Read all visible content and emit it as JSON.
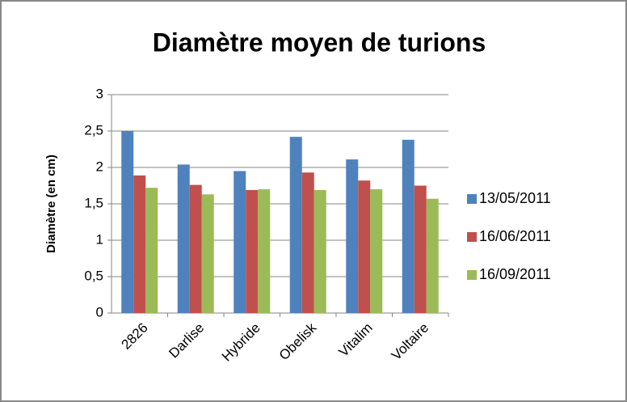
{
  "chart_data": {
    "type": "bar",
    "title": "Diamètre moyen de turions",
    "y_label": "Diamètre (en cm)",
    "categories": [
      "2826",
      "Darlise",
      "Hybride",
      "Obelisk",
      "Vitalim",
      "Voltaire"
    ],
    "series": [
      {
        "name": "13/05/2011",
        "color": "#4f81bd",
        "values": [
          2.5,
          2.04,
          1.95,
          2.42,
          2.11,
          2.38
        ]
      },
      {
        "name": "16/06/2011",
        "color": "#c0504d",
        "values": [
          1.89,
          1.76,
          1.69,
          1.93,
          1.82,
          1.75
        ]
      },
      {
        "name": "16/09/2011",
        "color": "#9bbb59",
        "values": [
          1.72,
          1.63,
          1.7,
          1.69,
          1.7,
          1.57
        ]
      }
    ],
    "ylim": [
      0,
      3
    ],
    "yticks": [
      0,
      {
        "value": 0.5,
        "label": "0,5"
      },
      1,
      {
        "value": 1.5,
        "label": "1,5"
      },
      2,
      {
        "value": 2.5,
        "label": "2,5"
      },
      3
    ],
    "grid": true,
    "legend": "right"
  }
}
